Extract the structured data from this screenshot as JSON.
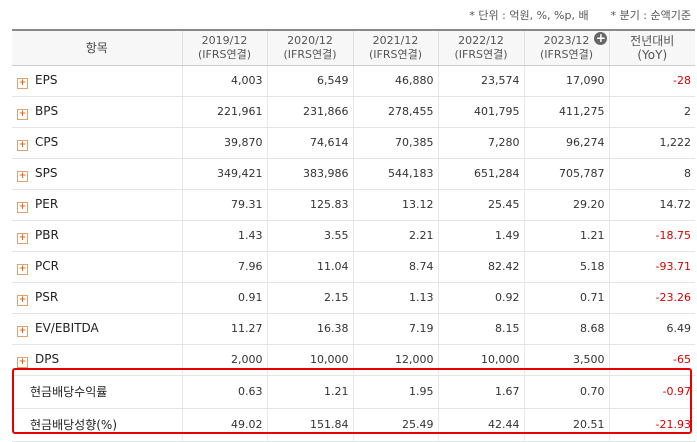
{
  "notes": {
    "unit": "* 단위 : 억원, %, %p, 배",
    "period": "* 분기 : 순액기준"
  },
  "header": {
    "item": "항목",
    "columns": [
      {
        "year": "2019/12",
        "basis": "(IFRS연결)"
      },
      {
        "year": "2020/12",
        "basis": "(IFRS연결)"
      },
      {
        "year": "2021/12",
        "basis": "(IFRS연결)"
      },
      {
        "year": "2022/12",
        "basis": "(IFRS연결)"
      },
      {
        "year": "2023/12",
        "basis": "(IFRS연결)"
      }
    ],
    "yoy_line1": "전년대비",
    "yoy_line2": "(YoY)",
    "plus_icon": "+"
  },
  "expand_glyph": "+",
  "rows": [
    {
      "label": "EPS",
      "values": [
        "4,003",
        "6,549",
        "46,880",
        "23,574",
        "17,090",
        "-28"
      ]
    },
    {
      "label": "BPS",
      "values": [
        "221,961",
        "231,866",
        "278,455",
        "401,795",
        "411,275",
        "2"
      ]
    },
    {
      "label": "CPS",
      "values": [
        "39,870",
        "74,614",
        "70,385",
        "7,280",
        "96,274",
        "1,222"
      ]
    },
    {
      "label": "SPS",
      "values": [
        "349,421",
        "383,986",
        "544,183",
        "651,284",
        "705,787",
        "8"
      ]
    },
    {
      "label": "PER",
      "values": [
        "79.31",
        "125.83",
        "13.12",
        "25.45",
        "29.20",
        "14.72"
      ]
    },
    {
      "label": "PBR",
      "values": [
        "1.43",
        "3.55",
        "2.21",
        "1.49",
        "1.21",
        "-18.75"
      ]
    },
    {
      "label": "PCR",
      "values": [
        "7.96",
        "11.04",
        "8.74",
        "82.42",
        "5.18",
        "-93.71"
      ]
    },
    {
      "label": "PSR",
      "values": [
        "0.91",
        "2.15",
        "1.13",
        "0.92",
        "0.71",
        "-23.26"
      ]
    },
    {
      "label": "EV/EBITDA",
      "values": [
        "11.27",
        "16.38",
        "7.19",
        "8.15",
        "8.68",
        "6.49"
      ]
    },
    {
      "label": "DPS",
      "values": [
        "2,000",
        "10,000",
        "12,000",
        "10,000",
        "3,500",
        "-65"
      ]
    }
  ],
  "highlighted_rows": [
    {
      "label": "현금배당수익률",
      "values": [
        "0.63",
        "1.21",
        "1.95",
        "1.67",
        "0.70",
        "-0.97"
      ]
    },
    {
      "label": "현금배당성향(%)",
      "values": [
        "49.02",
        "151.84",
        "25.49",
        "42.44",
        "20.51",
        "-21.93"
      ]
    }
  ],
  "colors": {
    "negative": "#d90000",
    "highlight_border": "#e60000",
    "expand_icon": "#e66a1e"
  }
}
